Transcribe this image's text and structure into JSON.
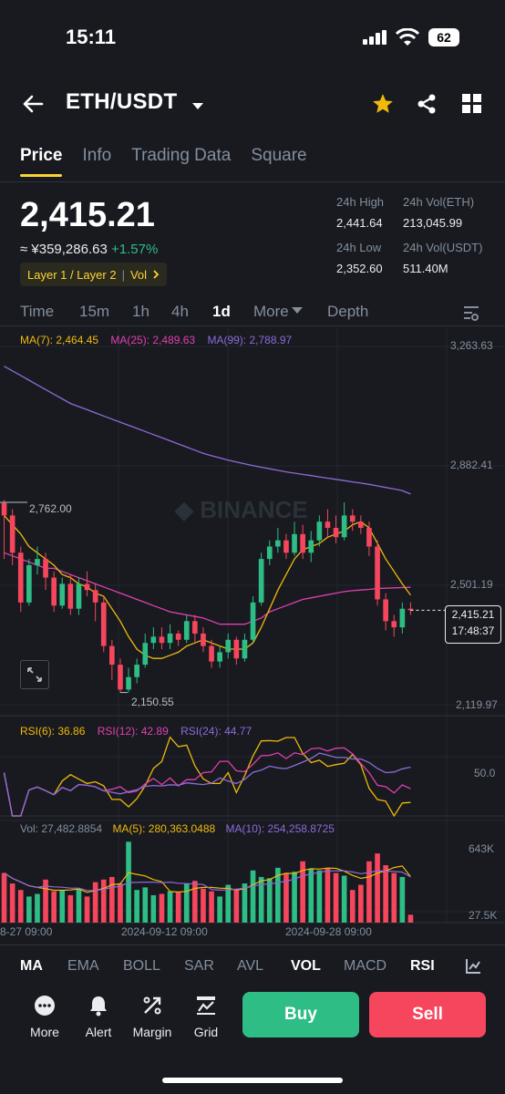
{
  "status": {
    "time": "15:11",
    "battery": "62"
  },
  "header": {
    "pair": "ETH/USDT"
  },
  "tabs": [
    "Price",
    "Info",
    "Trading Data",
    "Square"
  ],
  "ticker": {
    "last_price": "2,415.21",
    "cny_value": "≈ ¥359,286.63",
    "change": "+1.57%",
    "tags": [
      "Layer 1 / Layer 2",
      "Vol"
    ],
    "high_label": "24h High",
    "high": "2,441.64",
    "vol_eth_label": "24h Vol(ETH)",
    "vol_eth": "213,045.99",
    "low_label": "24h Low",
    "low": "2,352.60",
    "vol_usdt_label": "24h Vol(USDT)",
    "vol_usdt": "511.40M"
  },
  "intervals": [
    "Time",
    "15m",
    "1h",
    "4h",
    "1d",
    "More",
    "Depth"
  ],
  "chart": {
    "ma7": "MA(7): 2,464.45",
    "ma25": "MA(25): 2,489.63",
    "ma99": "MA(99): 2,788.97",
    "y_ticks": [
      "3,263.63",
      "2,882.41",
      "2,501.19",
      "2,119.97"
    ],
    "high_marker": "2,762.00",
    "low_marker": "2,150.55",
    "watermark": "BINANCE",
    "current_price": "2,415.21",
    "countdown": "17:48:37",
    "rsi6": "RSI(6): 36.86",
    "rsi12": "RSI(12): 42.89",
    "rsi24": "RSI(24): 44.77",
    "rsi_tick": "50.0",
    "vol_label": "Vol: 27,482.8854",
    "vol_ma5": "MA(5): 280,363.0488",
    "vol_ma10": "MA(10): 254,258.8725",
    "vol_ticks": [
      "643K",
      "27.5K"
    ],
    "x_labels": [
      "8-27 09:00",
      "2024-09-12 09:00",
      "2024-09-28 09:00"
    ],
    "colors": {
      "up": "#2ebd85",
      "down": "#f6465d",
      "ma7": "#f0b90b",
      "ma25": "#e040b0",
      "ma99": "#8e6bd8"
    }
  },
  "chart_data": {
    "type": "candlestick",
    "ylim": [
      2119.97,
      3263.63
    ],
    "candles": [
      [
        2760,
        2720,
        2770,
        2580
      ],
      [
        2720,
        2600,
        2740,
        2560
      ],
      [
        2600,
        2440,
        2620,
        2410
      ],
      [
        2440,
        2560,
        2580,
        2430
      ],
      [
        2560,
        2580,
        2620,
        2530
      ],
      [
        2580,
        2520,
        2600,
        2480
      ],
      [
        2520,
        2430,
        2540,
        2410
      ],
      [
        2430,
        2500,
        2520,
        2420
      ],
      [
        2500,
        2420,
        2530,
        2400
      ],
      [
        2420,
        2500,
        2520,
        2400
      ],
      [
        2500,
        2480,
        2540,
        2460
      ],
      [
        2480,
        2440,
        2500,
        2380
      ],
      [
        2440,
        2300,
        2460,
        2280
      ],
      [
        2300,
        2240,
        2320,
        2190
      ],
      [
        2240,
        2160,
        2260,
        2150
      ],
      [
        2160,
        2200,
        2230,
        2150
      ],
      [
        2200,
        2240,
        2260,
        2180
      ],
      [
        2240,
        2310,
        2340,
        2230
      ],
      [
        2310,
        2330,
        2360,
        2290
      ],
      [
        2330,
        2310,
        2360,
        2290
      ],
      [
        2310,
        2340,
        2370,
        2290
      ],
      [
        2340,
        2320,
        2350,
        2300
      ],
      [
        2320,
        2380,
        2400,
        2310
      ],
      [
        2380,
        2340,
        2400,
        2310
      ],
      [
        2340,
        2300,
        2360,
        2280
      ],
      [
        2300,
        2250,
        2320,
        2230
      ],
      [
        2250,
        2280,
        2300,
        2230
      ],
      [
        2280,
        2320,
        2340,
        2260
      ],
      [
        2320,
        2260,
        2330,
        2240
      ],
      [
        2260,
        2320,
        2340,
        2250
      ],
      [
        2320,
        2440,
        2460,
        2310
      ],
      [
        2440,
        2580,
        2600,
        2430
      ],
      [
        2580,
        2620,
        2640,
        2560
      ],
      [
        2620,
        2640,
        2680,
        2600
      ],
      [
        2640,
        2600,
        2660,
        2580
      ],
      [
        2600,
        2660,
        2700,
        2590
      ],
      [
        2660,
        2600,
        2690,
        2580
      ],
      [
        2600,
        2640,
        2670,
        2570
      ],
      [
        2640,
        2700,
        2720,
        2620
      ],
      [
        2700,
        2680,
        2740,
        2650
      ],
      [
        2680,
        2650,
        2720,
        2630
      ],
      [
        2650,
        2720,
        2762,
        2640
      ],
      [
        2720,
        2700,
        2740,
        2670
      ],
      [
        2700,
        2680,
        2720,
        2660
      ],
      [
        2680,
        2620,
        2700,
        2590
      ],
      [
        2620,
        2450,
        2640,
        2430
      ],
      [
        2450,
        2380,
        2470,
        2350
      ],
      [
        2380,
        2360,
        2400,
        2330
      ],
      [
        2360,
        2420,
        2440,
        2340
      ],
      [
        2420,
        2415,
        2441,
        2400
      ]
    ],
    "ma7": [
      2720,
      2690,
      2660,
      2620,
      2600,
      2580,
      2560,
      2530,
      2520,
      2500,
      2490,
      2470,
      2460,
      2420,
      2380,
      2330,
      2290,
      2270,
      2260,
      2260,
      2270,
      2280,
      2300,
      2310,
      2320,
      2310,
      2300,
      2290,
      2290,
      2290,
      2310,
      2360,
      2420,
      2480,
      2530,
      2580,
      2610,
      2620,
      2630,
      2650,
      2660,
      2670,
      2690,
      2700,
      2680,
      2630,
      2580,
      2540,
      2500,
      2464
    ],
    "ma25": [
      2600,
      2590,
      2580,
      2570,
      2560,
      2550,
      2550,
      2540,
      2530,
      2520,
      2510,
      2500,
      2490,
      2480,
      2470,
      2460,
      2450,
      2440,
      2430,
      2420,
      2410,
      2405,
      2400,
      2395,
      2390,
      2380,
      2370,
      2370,
      2370,
      2370,
      2380,
      2390,
      2410,
      2420,
      2430,
      2440,
      2450,
      2455,
      2460,
      2465,
      2470,
      2475,
      2478,
      2480,
      2482,
      2485,
      2486,
      2487,
      2488,
      2489
    ],
    "ma99": [
      3200,
      3185,
      3170,
      3155,
      3140,
      3125,
      3110,
      3095,
      3080,
      3070,
      3060,
      3050,
      3040,
      3030,
      3020,
      3010,
      3000,
      2990,
      2980,
      2970,
      2960,
      2950,
      2940,
      2930,
      2920,
      2912,
      2905,
      2898,
      2892,
      2886,
      2880,
      2875,
      2870,
      2865,
      2860,
      2856,
      2852,
      2848,
      2844,
      2840,
      2836,
      2832,
      2828,
      2824,
      2820,
      2815,
      2810,
      2805,
      2800,
      2789
    ],
    "volume": [
      380,
      300,
      250,
      200,
      220,
      330,
      240,
      250,
      210,
      260,
      200,
      310,
      330,
      350,
      300,
      620,
      250,
      270,
      210,
      220,
      240,
      230,
      300,
      320,
      260,
      240,
      200,
      290,
      260,
      300,
      400,
      350,
      340,
      420,
      380,
      390,
      470,
      410,
      400,
      420,
      380,
      360,
      250,
      290,
      470,
      530,
      440,
      380,
      350,
      60
    ]
  },
  "indicators": [
    "MA",
    "EMA",
    "BOLL",
    "SAR",
    "AVL",
    "VOL",
    "MACD",
    "RSI"
  ],
  "toolbar": {
    "more": "More",
    "alert": "Alert",
    "margin": "Margin",
    "grid": "Grid",
    "buy": "Buy",
    "sell": "Sell"
  }
}
